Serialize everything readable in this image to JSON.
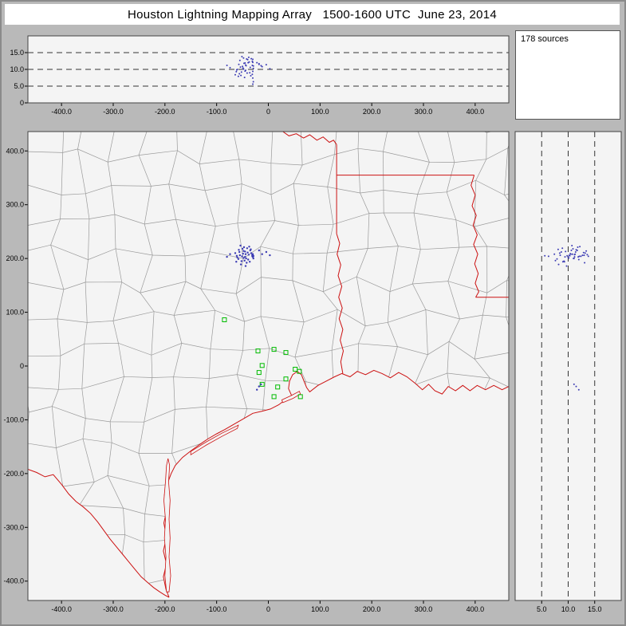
{
  "title": "Houston Lightning Mapping Array   1500-1600 UTC  June 23, 2014",
  "sources_label": "178 sources",
  "colors": {
    "page_background": "#b9b9b9",
    "panel_background": "#f4f4f4",
    "titlebar_background": "#ffffff",
    "county_line": "#9a9a9a",
    "state_border": "#cc1111",
    "station_marker": "#00bb00",
    "source_point": "#3c3cb4",
    "grid_dash": "#333333",
    "axis_border": "#444444"
  },
  "axes": {
    "east_west_km": {
      "range": [
        -465,
        465
      ],
      "tick_values": [
        -400,
        -300,
        -200,
        -100,
        0,
        100,
        200,
        300,
        400
      ],
      "tick_labels": [
        "-400.0",
        "-300.0",
        "-200.0",
        "-100.0",
        "0",
        "100.0",
        "200.0",
        "300.0",
        "400.0"
      ]
    },
    "north_south_km": {
      "range": [
        -436,
        436
      ],
      "tick_values": [
        400,
        300,
        200,
        100,
        0,
        -100,
        -200,
        -300,
        -400
      ],
      "tick_labels": [
        "400.0",
        "300.0",
        "200.0",
        "100.0",
        "0",
        "-100.0",
        "-200.0",
        "-300.0",
        "-400.0"
      ]
    },
    "altitude_top_panel": {
      "range": [
        0,
        20
      ],
      "tick_values": [
        15,
        10,
        5,
        0
      ],
      "tick_labels": [
        "15.0",
        "10.0",
        "5.0",
        "0"
      ],
      "dashed_gridlines": [
        5,
        10,
        15
      ]
    },
    "altitude_right_panel": {
      "range": [
        0,
        20
      ],
      "tick_values": [
        5,
        10,
        15
      ],
      "tick_labels": [
        "5.0",
        "10.0",
        "15.0"
      ],
      "dashed_gridlines": [
        5,
        10,
        15
      ]
    }
  },
  "chart_data": {
    "type": "scatter",
    "title": "Houston Lightning Mapping Array 1500-1600 UTC June 23, 2014",
    "source_count": 178,
    "panels": [
      {
        "id": "altitude-vs-east-west",
        "x_range": [
          -465,
          465
        ],
        "y_range": [
          0,
          20
        ],
        "gridlines_alt_km": [
          5,
          10,
          15
        ]
      },
      {
        "id": "plan-view-map",
        "x_range": [
          -465,
          465
        ],
        "y_range": [
          -436,
          436
        ],
        "map_features": [
          "county boundaries",
          "state borders",
          "gulf coastline",
          "barrier islands"
        ]
      },
      {
        "id": "altitude-vs-north-south",
        "x_range": [
          0,
          20
        ],
        "y_range": [
          -436,
          436
        ],
        "gridlines_alt_km": [
          5,
          10,
          15
        ]
      }
    ],
    "stations_ew_ns_km": [
      [
        -85,
        86
      ],
      [
        -20,
        28
      ],
      [
        11,
        31
      ],
      [
        34,
        25
      ],
      [
        -12,
        1
      ],
      [
        -18,
        -12
      ],
      [
        52,
        -6
      ],
      [
        60,
        -10
      ],
      [
        -12,
        -34
      ],
      [
        18,
        -39
      ],
      [
        34,
        -24
      ],
      [
        11,
        -57
      ],
      [
        62,
        -57
      ]
    ],
    "sources_ew_ns_alt_km": [
      [
        -52,
        195,
        9.2
      ],
      [
        -48,
        201,
        10.1
      ],
      [
        -44,
        208,
        11.3
      ],
      [
        -56,
        212,
        8.7
      ],
      [
        -39,
        198,
        12.0
      ],
      [
        -61,
        205,
        9.8
      ],
      [
        -35,
        215,
        10.6
      ],
      [
        -47,
        221,
        11.8
      ],
      [
        -53,
        189,
        8.2
      ],
      [
        -42,
        192,
        13.1
      ],
      [
        -58,
        199,
        7.9
      ],
      [
        -31,
        204,
        12.4
      ],
      [
        -45,
        213,
        9.5
      ],
      [
        -50,
        218,
        10.9
      ],
      [
        -38,
        207,
        13.6
      ],
      [
        -64,
        210,
        8.4
      ],
      [
        -43,
        200,
        11.1
      ],
      [
        -55,
        206,
        12.7
      ],
      [
        -36,
        194,
        9.0
      ],
      [
        -49,
        209,
        10.4
      ],
      [
        -57,
        216,
        11.5
      ],
      [
        -41,
        219,
        8.9
      ],
      [
        -33,
        210,
        13.2
      ],
      [
        -46,
        196,
        7.6
      ],
      [
        -60,
        202,
        10.0
      ],
      [
        -37,
        222,
        12.2
      ],
      [
        -51,
        204,
        13.8
      ],
      [
        -44,
        186,
        9.7
      ],
      [
        -29,
        200,
        11.0
      ],
      [
        -54,
        224,
        10.7
      ],
      [
        -40,
        211,
        12.9
      ],
      [
        -62,
        194,
        9.3
      ],
      [
        -34,
        217,
        8.1
      ],
      [
        -48,
        214,
        13.4
      ],
      [
        -45,
        203,
        11.9
      ],
      [
        -30,
        206,
        13.0
      ],
      [
        -30,
        204,
        12.1
      ],
      [
        -31,
        207,
        11.2
      ],
      [
        -29,
        205,
        10.3
      ],
      [
        -30,
        203,
        9.4
      ],
      [
        -31,
        206,
        8.5
      ],
      [
        -30,
        208,
        7.4
      ],
      [
        -29,
        204,
        6.3
      ],
      [
        -30,
        205,
        5.6
      ],
      [
        -12,
        208,
        10.8
      ],
      [
        -4,
        212,
        11.4
      ],
      [
        3,
        206,
        10.2
      ],
      [
        -18,
        215,
        11.7
      ],
      [
        -74,
        208,
        10.5
      ],
      [
        -80,
        203,
        11.2
      ],
      [
        -18,
        -38,
        11.5
      ],
      [
        -22,
        -44,
        12.0
      ],
      [
        -14,
        -34,
        11.1
      ]
    ]
  }
}
